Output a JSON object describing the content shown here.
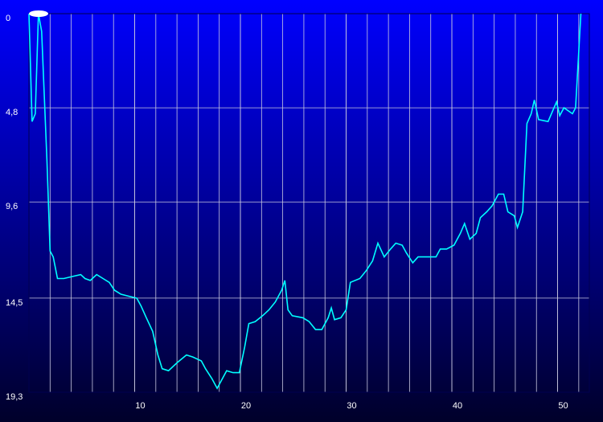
{
  "chart_data": {
    "type": "line",
    "xlim": [
      0,
      53
    ],
    "xticks": [
      10,
      20,
      30,
      40,
      50
    ],
    "ylim": [
      0,
      19.3
    ],
    "y_inverted": true,
    "yticks": [
      0,
      {
        "value": 4.8,
        "label": "4,8"
      },
      {
        "value": 9.6,
        "label": "9,6"
      },
      {
        "value": 14.5,
        "label": "14,5"
      },
      {
        "value": 19.3,
        "label": "19,3"
      }
    ],
    "grid": true,
    "series": [
      {
        "color": "#00ffff",
        "x": [
          0,
          0.3,
          0.6,
          0.9,
          1.2,
          1.7,
          2.0,
          2.3,
          2.7,
          3.3,
          4.1,
          4.9,
          5.3,
          5.8,
          6.4,
          7.0,
          7.6,
          8.1,
          8.7,
          9.4,
          10.2,
          10.6,
          11.1,
          11.7,
          12.2,
          12.6,
          13.2,
          14.0,
          14.9,
          15.5,
          16.3,
          16.7,
          17.3,
          17.8,
          18.3,
          18.7,
          19.3,
          19.9,
          20.4,
          20.8,
          21.4,
          22.1,
          22.7,
          23.3,
          23.9,
          24.2,
          24.5,
          24.9,
          25.9,
          26.5,
          27.1,
          27.7,
          28.3,
          28.6,
          28.9,
          29.5,
          30.0,
          30.4,
          31.3,
          31.9,
          32.5,
          33.0,
          33.6,
          34.2,
          34.7,
          35.3,
          35.7,
          36.3,
          36.8,
          37.4,
          38.0,
          38.5,
          38.9,
          39.5,
          40.2,
          40.8,
          41.2,
          41.7,
          42.3,
          42.7,
          43.3,
          43.8,
          44.4,
          44.9,
          45.3,
          45.9,
          46.2,
          46.7,
          47.1,
          47.5,
          47.8,
          48.2,
          49.1,
          49.9,
          50.2,
          50.6,
          51.4,
          51.7,
          52.2
        ],
        "values": [
          0,
          5.5,
          5.1,
          0,
          0.9,
          7.5,
          12.1,
          12.4,
          13.5,
          13.5,
          13.4,
          13.3,
          13.5,
          13.6,
          13.3,
          13.5,
          13.7,
          14.1,
          14.3,
          14.4,
          14.5,
          14.9,
          15.5,
          16.2,
          17.4,
          18.1,
          18.2,
          17.8,
          17.4,
          17.5,
          17.7,
          18.1,
          18.6,
          19.1,
          18.6,
          18.2,
          18.3,
          18.3,
          17.0,
          15.8,
          15.7,
          15.4,
          15.1,
          14.7,
          14.1,
          13.6,
          15.1,
          15.4,
          15.5,
          15.7,
          16.1,
          16.1,
          15.5,
          15.0,
          15.6,
          15.5,
          15.1,
          13.7,
          13.5,
          13.1,
          12.6,
          11.7,
          12.4,
          12.0,
          11.7,
          11.8,
          12.2,
          12.7,
          12.4,
          12.4,
          12.4,
          12.4,
          12.0,
          12.0,
          11.8,
          11.2,
          10.7,
          11.5,
          11.2,
          10.4,
          10.1,
          9.8,
          9.2,
          9.2,
          10.1,
          10.3,
          10.9,
          10.1,
          5.6,
          5.1,
          4.4,
          5.4,
          5.5,
          4.5,
          5.2,
          4.8,
          5.1,
          4.8,
          0
        ]
      }
    ]
  }
}
